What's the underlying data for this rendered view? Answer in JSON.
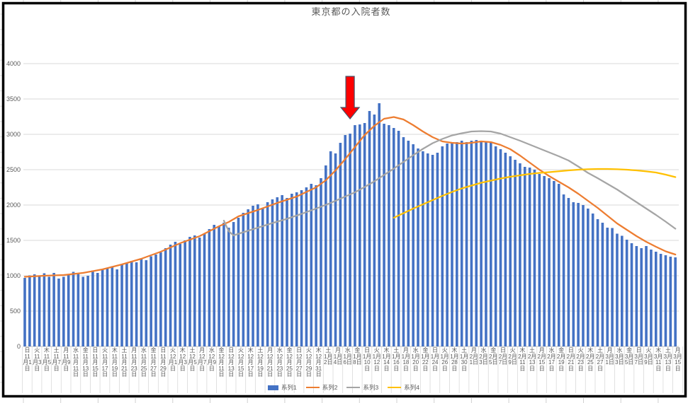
{
  "chart_data": {
    "type": "combo-bar-line",
    "title": "東京都の入院者数",
    "y_axis": {
      "min": 0,
      "max": 4000,
      "step": 500,
      "ticks": [
        0,
        500,
        1000,
        1500,
        2000,
        2500,
        3000,
        3500,
        4000
      ]
    },
    "x_axis": {
      "note": "daily categories 11月1日〜3月15日, label every 2 days, each label = weekday + date stacked vertically",
      "labels": [
        {
          "dow": "日",
          "date": "11月1日",
          "wrap": "11\n月1\n日"
        },
        {
          "dow": "火",
          "date": "11月3日",
          "wrap": "11\n月3\n日"
        },
        {
          "dow": "木",
          "date": "11月5日",
          "wrap": "11\n月5\n日"
        },
        {
          "dow": "土",
          "date": "11月7日",
          "wrap": "11\n月7\n日"
        },
        {
          "dow": "月",
          "date": "11月9日",
          "wrap": "11\n月9\n日"
        },
        {
          "dow": "水",
          "date": "11月11日",
          "wrap": "11\n月\n11\n日"
        },
        {
          "dow": "金",
          "date": "11月13日",
          "wrap": "11\n月\n13\n日"
        },
        {
          "dow": "日",
          "date": "11月15日",
          "wrap": "11\n月\n15\n日"
        },
        {
          "dow": "火",
          "date": "11月17日",
          "wrap": "11\n月\n17\n日"
        },
        {
          "dow": "木",
          "date": "11月19日",
          "wrap": "11\n月\n19\n日"
        },
        {
          "dow": "土",
          "date": "11月21日",
          "wrap": "11\n月\n21\n日"
        },
        {
          "dow": "月",
          "date": "11月23日",
          "wrap": "11\n月\n23\n日"
        },
        {
          "dow": "水",
          "date": "11月25日",
          "wrap": "11\n月\n25\n日"
        },
        {
          "dow": "金",
          "date": "11月27日",
          "wrap": "11\n月\n27\n日"
        },
        {
          "dow": "日",
          "date": "11月29日",
          "wrap": "11\n月\n29\n日"
        },
        {
          "dow": "火",
          "date": "12月1日",
          "wrap": "12\n月1\n日"
        },
        {
          "dow": "木",
          "date": "12月3日",
          "wrap": "12\n月3\n日"
        },
        {
          "dow": "土",
          "date": "12月5日",
          "wrap": "12\n月5\n日"
        },
        {
          "dow": "月",
          "date": "12月7日",
          "wrap": "12\n月7\n日"
        },
        {
          "dow": "水",
          "date": "12月9日",
          "wrap": "12\n月9\n日"
        },
        {
          "dow": "金",
          "date": "12月11日",
          "wrap": "12\n月\n11\n日"
        },
        {
          "dow": "日",
          "date": "12月13日",
          "wrap": "12\n月\n13\n日"
        },
        {
          "dow": "火",
          "date": "12月15日",
          "wrap": "12\n月\n15\n日"
        },
        {
          "dow": "木",
          "date": "12月17日",
          "wrap": "12\n月\n17\n日"
        },
        {
          "dow": "土",
          "date": "12月19日",
          "wrap": "12\n月\n19\n日"
        },
        {
          "dow": "月",
          "date": "12月21日",
          "wrap": "12\n月\n21\n日"
        },
        {
          "dow": "水",
          "date": "12月23日",
          "wrap": "12\n月\n23\n日"
        },
        {
          "dow": "金",
          "date": "12月25日",
          "wrap": "12\n月\n25\n日"
        },
        {
          "dow": "日",
          "date": "12月27日",
          "wrap": "12\n月\n27\n日"
        },
        {
          "dow": "火",
          "date": "12月29日",
          "wrap": "12\n月\n29\n日"
        },
        {
          "dow": "木",
          "date": "12月31日",
          "wrap": "12\n月\n31\n日"
        },
        {
          "dow": "土",
          "date": "1月2日",
          "wrap": "1月\n2日"
        },
        {
          "dow": "月",
          "date": "1月4日",
          "wrap": "1月\n4日"
        },
        {
          "dow": "水",
          "date": "1月6日",
          "wrap": "1月\n6日"
        },
        {
          "dow": "金",
          "date": "1月8日",
          "wrap": "1月\n8日"
        },
        {
          "dow": "日",
          "date": "1月10日",
          "wrap": "1月\n10\n日"
        },
        {
          "dow": "火",
          "date": "1月12日",
          "wrap": "1月\n12\n日"
        },
        {
          "dow": "木",
          "date": "1月14日",
          "wrap": "1月\n14\n日"
        },
        {
          "dow": "土",
          "date": "1月16日",
          "wrap": "1月\n16\n日"
        },
        {
          "dow": "月",
          "date": "1月18日",
          "wrap": "1月\n18\n日"
        },
        {
          "dow": "水",
          "date": "1月20日",
          "wrap": "1月\n20\n日"
        },
        {
          "dow": "金",
          "date": "1月22日",
          "wrap": "1月\n22\n日"
        },
        {
          "dow": "日",
          "date": "1月24日",
          "wrap": "1月\n24\n日"
        },
        {
          "dow": "火",
          "date": "1月26日",
          "wrap": "1月\n26\n日"
        },
        {
          "dow": "木",
          "date": "1月28日",
          "wrap": "1月\n28\n日"
        },
        {
          "dow": "土",
          "date": "1月30日",
          "wrap": "1月\n30\n日"
        },
        {
          "dow": "月",
          "date": "2月1日",
          "wrap": "2月\n1日"
        },
        {
          "dow": "水",
          "date": "2月3日",
          "wrap": "2月\n3日"
        },
        {
          "dow": "金",
          "date": "2月5日",
          "wrap": "2月\n5日"
        },
        {
          "dow": "日",
          "date": "2月7日",
          "wrap": "2月\n7日"
        },
        {
          "dow": "火",
          "date": "2月9日",
          "wrap": "2月\n9日"
        },
        {
          "dow": "木",
          "date": "2月11日",
          "wrap": "2月\n11\n日"
        },
        {
          "dow": "土",
          "date": "2月13日",
          "wrap": "2月\n13\n日"
        },
        {
          "dow": "月",
          "date": "2月15日",
          "wrap": "2月\n15\n日"
        },
        {
          "dow": "水",
          "date": "2月17日",
          "wrap": "2月\n17\n日"
        },
        {
          "dow": "金",
          "date": "2月19日",
          "wrap": "2月\n19\n日"
        },
        {
          "dow": "日",
          "date": "2月21日",
          "wrap": "2月\n21\n日"
        },
        {
          "dow": "火",
          "date": "2月23日",
          "wrap": "2月\n23\n日"
        },
        {
          "dow": "木",
          "date": "2月25日",
          "wrap": "2月\n25\n日"
        },
        {
          "dow": "土",
          "date": "2月27日",
          "wrap": "2月\n27\n日"
        },
        {
          "dow": "月",
          "date": "3月1日",
          "wrap": "3月\n1日"
        },
        {
          "dow": "水",
          "date": "3月3日",
          "wrap": "3月\n3日"
        },
        {
          "dow": "金",
          "date": "3月5日",
          "wrap": "3月\n5日"
        },
        {
          "dow": "日",
          "date": "3月7日",
          "wrap": "3月\n7日"
        },
        {
          "dow": "火",
          "date": "3月9日",
          "wrap": "3月\n9日"
        },
        {
          "dow": "木",
          "date": "3月11日",
          "wrap": "3月\n11\n日"
        },
        {
          "dow": "土",
          "date": "3月13日",
          "wrap": "3月\n13\n日"
        },
        {
          "dow": "月",
          "date": "3月15日",
          "wrap": "3月\n15\n日"
        }
      ]
    },
    "series": [
      {
        "name": "系列1",
        "type": "bar",
        "color": "#4472C4",
        "values": [
          970,
          1005,
          1020,
          1000,
          1035,
          985,
          1040,
          960,
          985,
          1010,
          1055,
          1040,
          985,
          1000,
          1075,
          1040,
          1090,
          1110,
          1135,
          1090,
          1160,
          1185,
          1210,
          1190,
          1245,
          1220,
          1275,
          1300,
          1330,
          1390,
          1440,
          1480,
          1450,
          1500,
          1550,
          1570,
          1540,
          1600,
          1660,
          1720,
          1700,
          1750,
          1680,
          1760,
          1820,
          1890,
          1940,
          1990,
          2010,
          1960,
          2040,
          2080,
          2110,
          2140,
          2100,
          2160,
          2180,
          2210,
          2250,
          2300,
          2280,
          2380,
          2560,
          2760,
          2730,
          2880,
          2990,
          3010,
          3130,
          3140,
          3160,
          3330,
          3280,
          3440,
          3150,
          3130,
          3090,
          3050,
          2960,
          2910,
          2860,
          2800,
          2760,
          2730,
          2710,
          2740,
          2830,
          2870,
          2880,
          2890,
          2910,
          2890,
          2910,
          2920,
          2910,
          2890,
          2880,
          2830,
          2790,
          2740,
          2690,
          2640,
          2590,
          2540,
          2530,
          2500,
          2440,
          2410,
          2380,
          2340,
          2300,
          2150,
          2100,
          2040,
          2030,
          2000,
          1950,
          1880,
          1800,
          1750,
          1680,
          1675,
          1595,
          1565,
          1510,
          1460,
          1420,
          1390,
          1420,
          1370,
          1340,
          1310,
          1290,
          1270,
          1260
        ]
      },
      {
        "name": "系列2",
        "type": "line",
        "color": "#ED7D31",
        "points": [
          [
            0,
            985
          ],
          [
            4,
            1000
          ],
          [
            8,
            1010
          ],
          [
            12,
            1040
          ],
          [
            16,
            1090
          ],
          [
            20,
            1160
          ],
          [
            24,
            1240
          ],
          [
            28,
            1340
          ],
          [
            32,
            1460
          ],
          [
            36,
            1560
          ],
          [
            40,
            1700
          ],
          [
            42,
            1760
          ],
          [
            44,
            1840
          ],
          [
            48,
            1930
          ],
          [
            52,
            2030
          ],
          [
            56,
            2120
          ],
          [
            60,
            2250
          ],
          [
            62,
            2350
          ],
          [
            64,
            2490
          ],
          [
            66,
            2650
          ],
          [
            68,
            2820
          ],
          [
            70,
            2990
          ],
          [
            72,
            3120
          ],
          [
            74,
            3220
          ],
          [
            76,
            3245
          ],
          [
            78,
            3210
          ],
          [
            80,
            3130
          ],
          [
            82,
            3040
          ],
          [
            84,
            2960
          ],
          [
            86,
            2900
          ],
          [
            88,
            2880
          ],
          [
            90,
            2870
          ],
          [
            92,
            2880
          ],
          [
            94,
            2900
          ],
          [
            96,
            2890
          ],
          [
            98,
            2850
          ],
          [
            100,
            2790
          ],
          [
            102,
            2700
          ],
          [
            104,
            2600
          ],
          [
            106,
            2500
          ],
          [
            108,
            2410
          ],
          [
            110,
            2330
          ],
          [
            112,
            2250
          ],
          [
            114,
            2160
          ],
          [
            116,
            2060
          ],
          [
            118,
            1960
          ],
          [
            120,
            1850
          ],
          [
            122,
            1740
          ],
          [
            124,
            1650
          ],
          [
            126,
            1560
          ],
          [
            128,
            1480
          ],
          [
            130,
            1410
          ],
          [
            132,
            1345
          ],
          [
            134,
            1300
          ]
        ]
      },
      {
        "name": "系列3",
        "type": "line",
        "color": "#A5A5A5",
        "points": [
          [
            41,
            1780
          ],
          [
            42,
            1630
          ],
          [
            43,
            1570
          ],
          [
            45,
            1615
          ],
          [
            48,
            1680
          ],
          [
            51,
            1745
          ],
          [
            54,
            1805
          ],
          [
            57,
            1875
          ],
          [
            60,
            1950
          ],
          [
            63,
            2030
          ],
          [
            66,
            2120
          ],
          [
            68,
            2180
          ],
          [
            70,
            2255
          ],
          [
            72,
            2335
          ],
          [
            74,
            2425
          ],
          [
            76,
            2515
          ],
          [
            78,
            2610
          ],
          [
            80,
            2705
          ],
          [
            82,
            2795
          ],
          [
            84,
            2875
          ],
          [
            86,
            2935
          ],
          [
            88,
            2985
          ],
          [
            90,
            3015
          ],
          [
            92,
            3040
          ],
          [
            94,
            3045
          ],
          [
            96,
            3040
          ],
          [
            98,
            3010
          ],
          [
            100,
            2960
          ],
          [
            102,
            2910
          ],
          [
            104,
            2855
          ],
          [
            106,
            2800
          ],
          [
            108,
            2745
          ],
          [
            110,
            2690
          ],
          [
            112,
            2630
          ],
          [
            114,
            2545
          ],
          [
            116,
            2455
          ],
          [
            118,
            2380
          ],
          [
            120,
            2300
          ],
          [
            122,
            2220
          ],
          [
            124,
            2130
          ],
          [
            126,
            2040
          ],
          [
            128,
            1950
          ],
          [
            130,
            1860
          ],
          [
            132,
            1765
          ],
          [
            134,
            1665
          ]
        ]
      },
      {
        "name": "系列4",
        "type": "line",
        "color": "#FFC000",
        "points": [
          [
            76,
            1820
          ],
          [
            78,
            1885
          ],
          [
            80,
            1950
          ],
          [
            82,
            2010
          ],
          [
            84,
            2070
          ],
          [
            86,
            2130
          ],
          [
            88,
            2185
          ],
          [
            90,
            2235
          ],
          [
            92,
            2275
          ],
          [
            94,
            2315
          ],
          [
            96,
            2345
          ],
          [
            98,
            2375
          ],
          [
            100,
            2400
          ],
          [
            102,
            2420
          ],
          [
            104,
            2440
          ],
          [
            106,
            2455
          ],
          [
            108,
            2465
          ],
          [
            110,
            2478
          ],
          [
            112,
            2490
          ],
          [
            114,
            2500
          ],
          [
            116,
            2506
          ],
          [
            118,
            2510
          ],
          [
            120,
            2510
          ],
          [
            122,
            2506
          ],
          [
            124,
            2500
          ],
          [
            126,
            2490
          ],
          [
            128,
            2476
          ],
          [
            130,
            2460
          ],
          [
            132,
            2430
          ],
          [
            134,
            2395
          ]
        ]
      }
    ],
    "legend": {
      "position": "bottom",
      "items": [
        "系列1",
        "系列2",
        "系列3",
        "系列4"
      ]
    },
    "annotation": {
      "shape": "block-arrow-down",
      "fill": "#FF0000",
      "outline": "#44546A",
      "points_at_index": 67
    },
    "colors": {
      "gridline": "#D9D9D9",
      "axis_line": "#BFBFBF",
      "axis_text": "#595959",
      "chart_border": "#000000"
    }
  }
}
